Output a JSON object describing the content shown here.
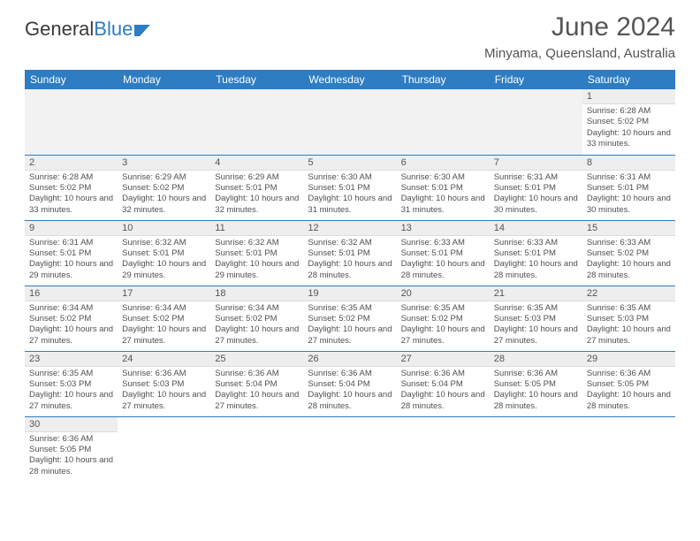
{
  "logo": {
    "part1": "General",
    "part2": "Blue"
  },
  "title": "June 2024",
  "location": "Minyama, Queensland, Australia",
  "dayHeaders": [
    "Sunday",
    "Monday",
    "Tuesday",
    "Wednesday",
    "Thursday",
    "Friday",
    "Saturday"
  ],
  "colors": {
    "headerBg": "#2e7cc2",
    "headerText": "#ffffff",
    "dayNumBg": "#eeeeee",
    "cellBorder": "#2e7cc2",
    "textColor": "#444444",
    "logoBlue": "#2e7cc2",
    "pageBg": "#ffffff"
  },
  "typography": {
    "titleSize": 30,
    "locationSize": 15,
    "headerSize": 12,
    "dayNumSize": 11,
    "bodySize": 9.5
  },
  "layout": {
    "type": "calendar",
    "columns": 7,
    "weeks": 6,
    "firstDayOffset": 6
  },
  "days": [
    {
      "n": 1,
      "sunrise": "6:28 AM",
      "sunset": "5:02 PM",
      "daylight": "10 hours and 33 minutes."
    },
    {
      "n": 2,
      "sunrise": "6:28 AM",
      "sunset": "5:02 PM",
      "daylight": "10 hours and 33 minutes."
    },
    {
      "n": 3,
      "sunrise": "6:29 AM",
      "sunset": "5:02 PM",
      "daylight": "10 hours and 32 minutes."
    },
    {
      "n": 4,
      "sunrise": "6:29 AM",
      "sunset": "5:01 PM",
      "daylight": "10 hours and 32 minutes."
    },
    {
      "n": 5,
      "sunrise": "6:30 AM",
      "sunset": "5:01 PM",
      "daylight": "10 hours and 31 minutes."
    },
    {
      "n": 6,
      "sunrise": "6:30 AM",
      "sunset": "5:01 PM",
      "daylight": "10 hours and 31 minutes."
    },
    {
      "n": 7,
      "sunrise": "6:31 AM",
      "sunset": "5:01 PM",
      "daylight": "10 hours and 30 minutes."
    },
    {
      "n": 8,
      "sunrise": "6:31 AM",
      "sunset": "5:01 PM",
      "daylight": "10 hours and 30 minutes."
    },
    {
      "n": 9,
      "sunrise": "6:31 AM",
      "sunset": "5:01 PM",
      "daylight": "10 hours and 29 minutes."
    },
    {
      "n": 10,
      "sunrise": "6:32 AM",
      "sunset": "5:01 PM",
      "daylight": "10 hours and 29 minutes."
    },
    {
      "n": 11,
      "sunrise": "6:32 AM",
      "sunset": "5:01 PM",
      "daylight": "10 hours and 29 minutes."
    },
    {
      "n": 12,
      "sunrise": "6:32 AM",
      "sunset": "5:01 PM",
      "daylight": "10 hours and 28 minutes."
    },
    {
      "n": 13,
      "sunrise": "6:33 AM",
      "sunset": "5:01 PM",
      "daylight": "10 hours and 28 minutes."
    },
    {
      "n": 14,
      "sunrise": "6:33 AM",
      "sunset": "5:01 PM",
      "daylight": "10 hours and 28 minutes."
    },
    {
      "n": 15,
      "sunrise": "6:33 AM",
      "sunset": "5:02 PM",
      "daylight": "10 hours and 28 minutes."
    },
    {
      "n": 16,
      "sunrise": "6:34 AM",
      "sunset": "5:02 PM",
      "daylight": "10 hours and 27 minutes."
    },
    {
      "n": 17,
      "sunrise": "6:34 AM",
      "sunset": "5:02 PM",
      "daylight": "10 hours and 27 minutes."
    },
    {
      "n": 18,
      "sunrise": "6:34 AM",
      "sunset": "5:02 PM",
      "daylight": "10 hours and 27 minutes."
    },
    {
      "n": 19,
      "sunrise": "6:35 AM",
      "sunset": "5:02 PM",
      "daylight": "10 hours and 27 minutes."
    },
    {
      "n": 20,
      "sunrise": "6:35 AM",
      "sunset": "5:02 PM",
      "daylight": "10 hours and 27 minutes."
    },
    {
      "n": 21,
      "sunrise": "6:35 AM",
      "sunset": "5:03 PM",
      "daylight": "10 hours and 27 minutes."
    },
    {
      "n": 22,
      "sunrise": "6:35 AM",
      "sunset": "5:03 PM",
      "daylight": "10 hours and 27 minutes."
    },
    {
      "n": 23,
      "sunrise": "6:35 AM",
      "sunset": "5:03 PM",
      "daylight": "10 hours and 27 minutes."
    },
    {
      "n": 24,
      "sunrise": "6:36 AM",
      "sunset": "5:03 PM",
      "daylight": "10 hours and 27 minutes."
    },
    {
      "n": 25,
      "sunrise": "6:36 AM",
      "sunset": "5:04 PM",
      "daylight": "10 hours and 27 minutes."
    },
    {
      "n": 26,
      "sunrise": "6:36 AM",
      "sunset": "5:04 PM",
      "daylight": "10 hours and 28 minutes."
    },
    {
      "n": 27,
      "sunrise": "6:36 AM",
      "sunset": "5:04 PM",
      "daylight": "10 hours and 28 minutes."
    },
    {
      "n": 28,
      "sunrise": "6:36 AM",
      "sunset": "5:05 PM",
      "daylight": "10 hours and 28 minutes."
    },
    {
      "n": 29,
      "sunrise": "6:36 AM",
      "sunset": "5:05 PM",
      "daylight": "10 hours and 28 minutes."
    },
    {
      "n": 30,
      "sunrise": "6:36 AM",
      "sunset": "5:05 PM",
      "daylight": "10 hours and 28 minutes."
    }
  ],
  "labels": {
    "sunrise": "Sunrise:",
    "sunset": "Sunset:",
    "daylight": "Daylight:"
  }
}
